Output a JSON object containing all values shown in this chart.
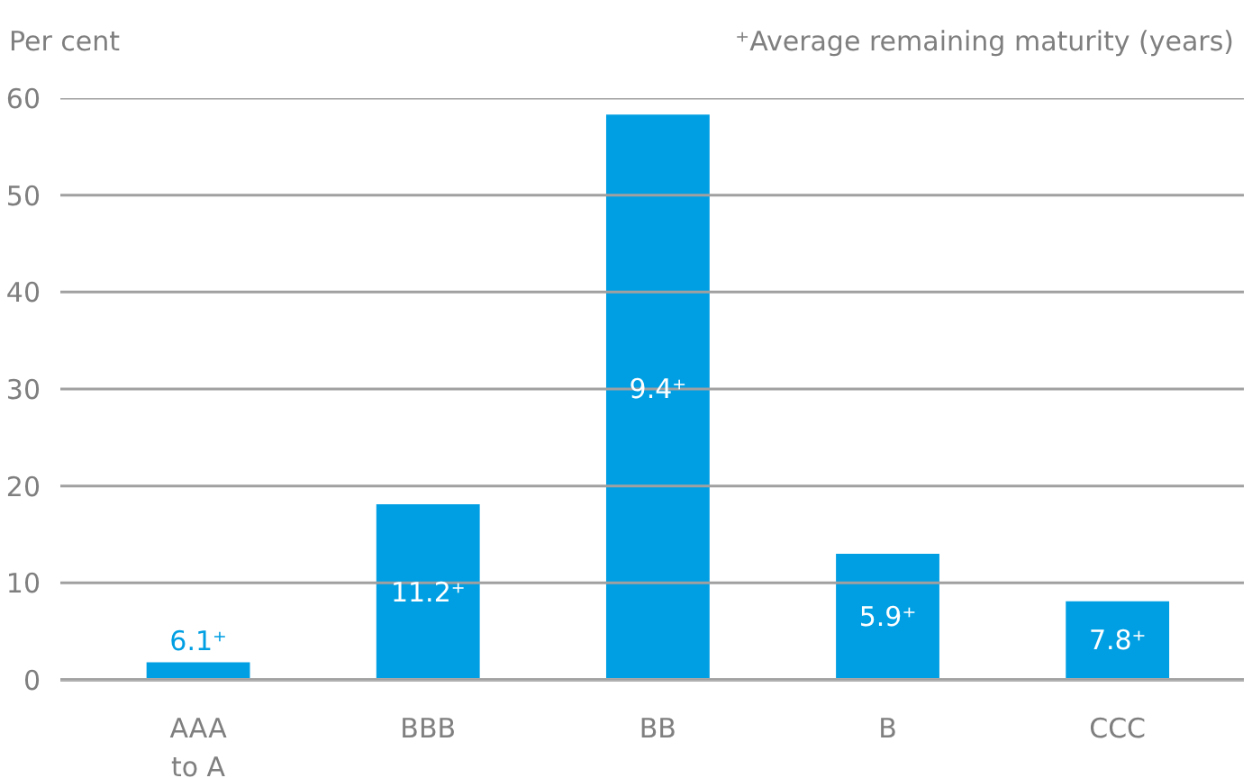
{
  "chart_data": {
    "type": "bar",
    "ylabel": "Per cent",
    "annotations": [
      "⁺Average remaining maturity (years)",
      "6.1⁺",
      "11.2⁺",
      "9.4⁺",
      "5.9⁺",
      "7.8⁺"
    ],
    "categories": [
      "AAA\nto A",
      "BBB",
      "BB",
      "B",
      "CCC"
    ],
    "values": [
      1.8,
      18.1,
      58.3,
      13.0,
      8.1
    ],
    "color": "#009fe3",
    "ylim": [
      0,
      60
    ],
    "yticks": [
      0,
      10,
      20,
      30,
      40,
      50,
      60
    ],
    "grid": "y"
  }
}
